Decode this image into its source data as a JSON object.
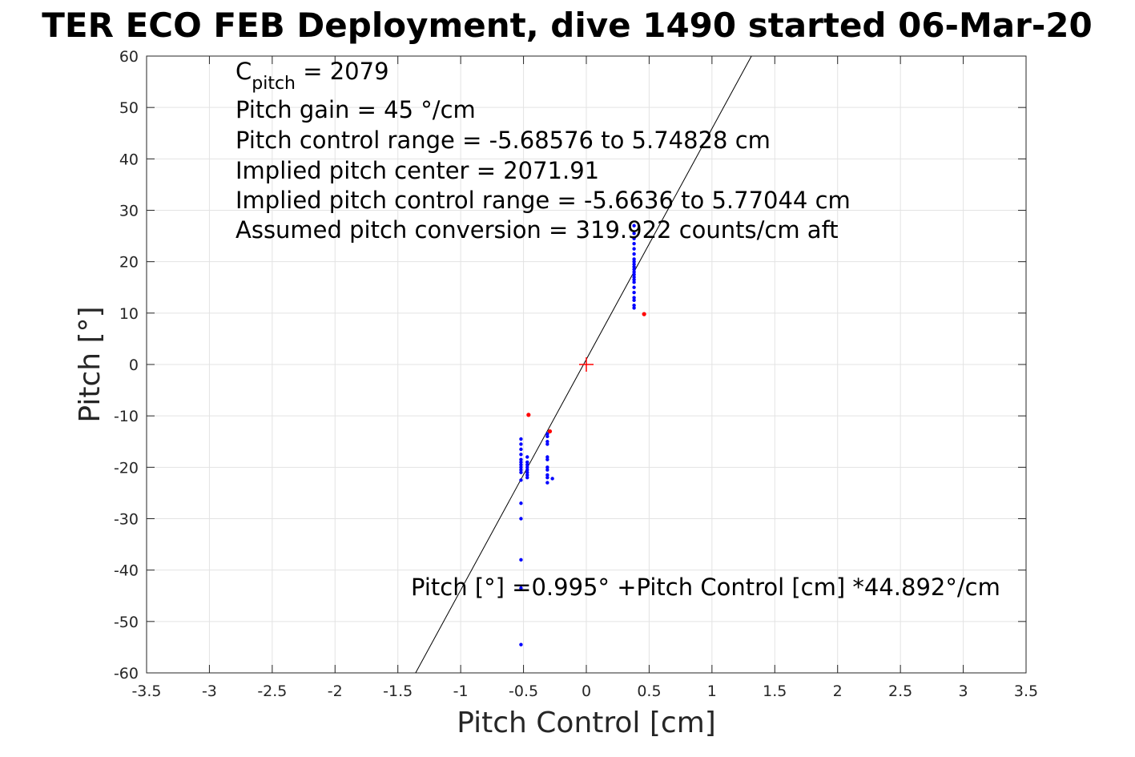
{
  "chart_data": {
    "type": "scatter",
    "title": "TER ECO FEB Deployment, dive 1490 started 06-Mar-20",
    "xlabel": "Pitch Control [cm]",
    "ylabel": "Pitch [°]",
    "xlim": [
      -3.5,
      3.5
    ],
    "ylim": [
      -60,
      60
    ],
    "xticks": [
      "-3.5",
      "-3",
      "-2.5",
      "-2",
      "-1.5",
      "-1",
      "-0.5",
      "0",
      "0.5",
      "1",
      "1.5",
      "2",
      "2.5",
      "3",
      "3.5"
    ],
    "yticks": [
      "60",
      "50",
      "40",
      "30",
      "20",
      "10",
      "0",
      "-10",
      "-20",
      "-30",
      "-40",
      "-50",
      "-60"
    ],
    "grid": true,
    "annotations": {
      "cpitch_main": "C",
      "cpitch_sub": "pitch",
      "cpitch_value": " = 2079",
      "lines": [
        "Pitch gain = 45 °/cm",
        "Pitch control range = -5.68576 to 5.74828 cm",
        "Implied pitch center = 2071.91",
        "Implied pitch control range = -5.6636 to 5.77044 cm",
        "Assumed pitch conversion = 319.922 counts/cm aft"
      ],
      "fit_equation": "Pitch [°] =0.995° +Pitch Control [cm] *44.892°/cm"
    },
    "fit_line": {
      "intercept": 0.995,
      "slope": 44.892,
      "color": "#000000"
    },
    "center_marker": {
      "x": 0,
      "y": 0,
      "color": "#ff0000"
    },
    "series": [
      {
        "color": "#0000ff",
        "points": [
          [
            0.38,
            27.0
          ],
          [
            0.38,
            25.5
          ],
          [
            0.38,
            24.5
          ],
          [
            0.38,
            23.5
          ],
          [
            0.38,
            22.5
          ],
          [
            0.38,
            21.5
          ],
          [
            0.38,
            20.5
          ],
          [
            0.38,
            20.0
          ],
          [
            0.38,
            19.5
          ],
          [
            0.38,
            19.0
          ],
          [
            0.38,
            18.5
          ],
          [
            0.38,
            18.0
          ],
          [
            0.38,
            17.5
          ],
          [
            0.38,
            17.0
          ],
          [
            0.38,
            16.5
          ],
          [
            0.38,
            16.0
          ],
          [
            0.38,
            15.0
          ],
          [
            0.38,
            14.0
          ],
          [
            0.38,
            13.0
          ],
          [
            0.38,
            12.5
          ],
          [
            0.38,
            11.5
          ],
          [
            0.38,
            11.0
          ],
          [
            -0.52,
            -14.5
          ],
          [
            -0.52,
            -15.5
          ],
          [
            -0.52,
            -16.5
          ],
          [
            -0.52,
            -17.5
          ],
          [
            -0.52,
            -18.5
          ],
          [
            -0.52,
            -19.0
          ],
          [
            -0.52,
            -19.5
          ],
          [
            -0.52,
            -20.0
          ],
          [
            -0.52,
            -20.5
          ],
          [
            -0.52,
            -21.0
          ],
          [
            -0.52,
            -22.5
          ],
          [
            -0.52,
            -27.0
          ],
          [
            -0.52,
            -30.0
          ],
          [
            -0.52,
            -38.0
          ],
          [
            -0.52,
            -43.5
          ],
          [
            -0.52,
            -54.5
          ],
          [
            -0.47,
            -18.0
          ],
          [
            -0.47,
            -19.0
          ],
          [
            -0.47,
            -19.5
          ],
          [
            -0.47,
            -20.0
          ],
          [
            -0.47,
            -20.5
          ],
          [
            -0.47,
            -21.0
          ],
          [
            -0.47,
            -21.5
          ],
          [
            -0.47,
            -22.0
          ],
          [
            -0.31,
            -13.5
          ],
          [
            -0.31,
            -14.0
          ],
          [
            -0.31,
            -15.0
          ],
          [
            -0.31,
            -15.5
          ],
          [
            -0.31,
            -18.0
          ],
          [
            -0.31,
            -18.5
          ],
          [
            -0.31,
            -20.0
          ],
          [
            -0.31,
            -20.5
          ],
          [
            -0.31,
            -21.5
          ],
          [
            -0.31,
            -22.0
          ],
          [
            -0.31,
            -23.0
          ],
          [
            -0.27,
            -22.2
          ]
        ]
      },
      {
        "color": "#ff0000",
        "points": [
          [
            0.46,
            9.8
          ],
          [
            -0.46,
            -9.8
          ],
          [
            -0.29,
            -13.0
          ]
        ]
      }
    ]
  }
}
